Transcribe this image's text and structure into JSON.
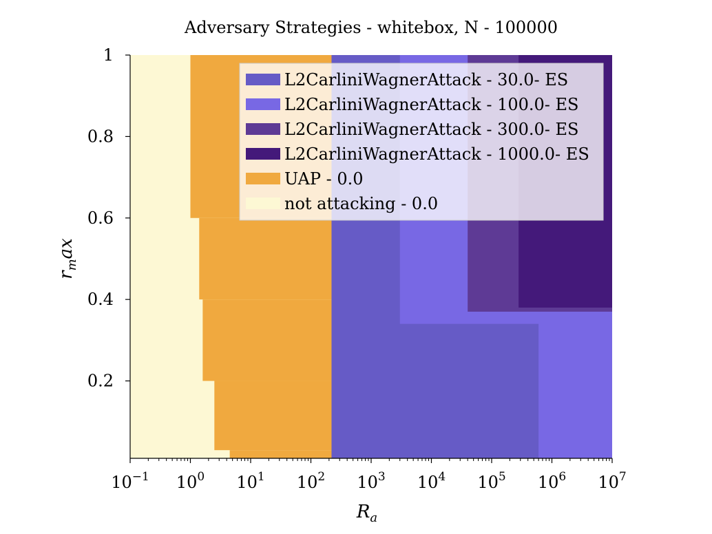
{
  "chart_data": {
    "type": "heatmap",
    "title": "Adversary Strategies - whitebox, N - 100000",
    "xlabel": "R_a",
    "ylabel": "r_m ax",
    "xscale": "log",
    "xlim": [
      0.1,
      10000000
    ],
    "ylim": [
      0.01,
      1.0
    ],
    "x_ticks": [
      {
        "base": "10",
        "exp": "−1",
        "value": 0.1
      },
      {
        "base": "10",
        "exp": "0",
        "value": 1
      },
      {
        "base": "10",
        "exp": "1",
        "value": 10
      },
      {
        "base": "10",
        "exp": "2",
        "value": 100
      },
      {
        "base": "10",
        "exp": "3",
        "value": 1000
      },
      {
        "base": "10",
        "exp": "4",
        "value": 10000
      },
      {
        "base": "10",
        "exp": "5",
        "value": 100000
      },
      {
        "base": "10",
        "exp": "6",
        "value": 1000000
      },
      {
        "base": "10",
        "exp": "7",
        "value": 10000000
      }
    ],
    "y_ticks": [
      {
        "label": "0.2",
        "value": 0.2
      },
      {
        "label": "0.4",
        "value": 0.4
      },
      {
        "label": "0.6",
        "value": 0.6
      },
      {
        "label": "0.8",
        "value": 0.8
      },
      {
        "label": "1",
        "value": 1.0
      }
    ],
    "legend_position": "top-right",
    "series": [
      {
        "name": "L2CarliniWagnerAttack - 30.0- ES",
        "color": "#665bc6"
      },
      {
        "name": "L2CarliniWagnerAttack - 100.0- ES",
        "color": "#7868e4"
      },
      {
        "name": "L2CarliniWagnerAttack - 300.0- ES",
        "color": "#5e3a95"
      },
      {
        "name": "L2CarliniWagnerAttack - 1000.0- ES",
        "color": "#44197a"
      },
      {
        "name": "UAP - 0.0",
        "color": "#f0a93f"
      },
      {
        "name": "not attacking - 0.0",
        "color": "#fdf8d4"
      }
    ],
    "regions": [
      {
        "series": 5,
        "x": [
          0.1,
          10000000
        ],
        "y": [
          0.01,
          1.0
        ]
      },
      {
        "series": 4,
        "x": [
          1.0,
          260
        ],
        "y": [
          0.6,
          1.0
        ]
      },
      {
        "series": 4,
        "x": [
          1.4,
          260
        ],
        "y": [
          0.4,
          0.6
        ]
      },
      {
        "series": 4,
        "x": [
          1.6,
          260
        ],
        "y": [
          0.2,
          0.4
        ]
      },
      {
        "series": 4,
        "x": [
          2.5,
          260
        ],
        "y": [
          0.03,
          0.2
        ]
      },
      {
        "series": 4,
        "x": [
          4.5,
          260
        ],
        "y": [
          0.01,
          0.03
        ]
      },
      {
        "series": 0,
        "x": [
          220,
          10000000
        ],
        "y": [
          0.01,
          1.0
        ]
      },
      {
        "series": 1,
        "x": [
          3000,
          10000000
        ],
        "y": [
          0.34,
          1.0
        ]
      },
      {
        "series": 1,
        "x": [
          600000,
          10000000
        ],
        "y": [
          0.01,
          0.37
        ]
      },
      {
        "series": 2,
        "x": [
          40000,
          10000000
        ],
        "y": [
          0.37,
          1.0
        ]
      },
      {
        "series": 3,
        "x": [
          280000,
          10000000
        ],
        "y": [
          0.38,
          1.0
        ]
      }
    ]
  }
}
